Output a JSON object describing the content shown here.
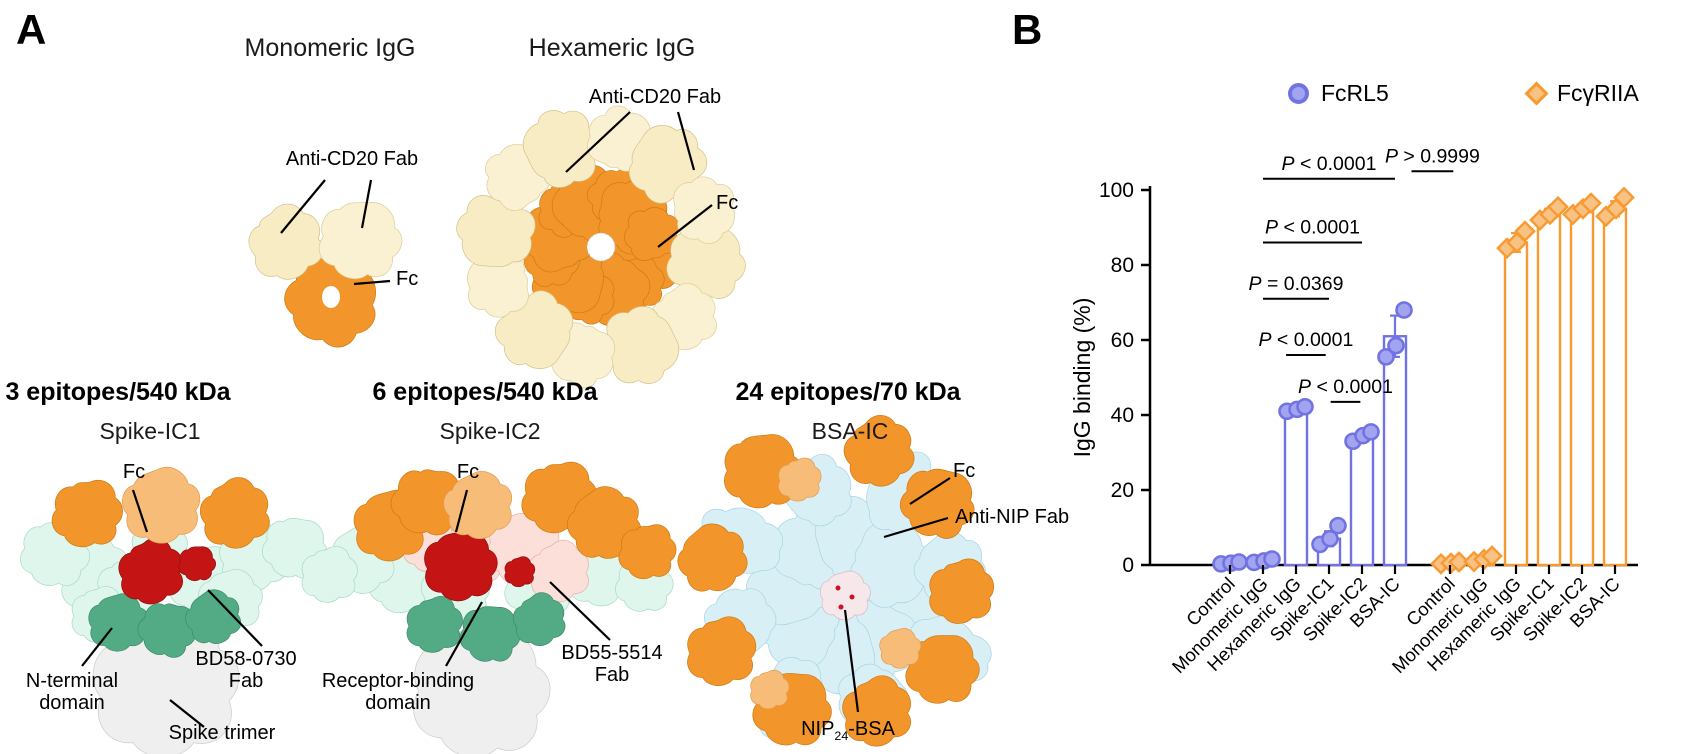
{
  "panel_a": {
    "label": "A",
    "structures": {
      "monomeric": {
        "title": "Monomeric IgG",
        "labels": {
          "fab": "Anti-CD20 Fab",
          "fc": "Fc"
        }
      },
      "hexameric": {
        "title": "Hexameric IgG",
        "labels": {
          "fab": "Anti-CD20 Fab",
          "fc": "Fc"
        }
      },
      "spike_ic1": {
        "heading": "3 epitopes/540 kDa",
        "title": "Spike-IC1",
        "labels": {
          "fc": "Fc",
          "fab": "BD58-0730\nFab",
          "ntd": "N-terminal\ndomain",
          "trimer": "Spike trimer"
        }
      },
      "spike_ic2": {
        "heading": "6 epitopes/540 kDa",
        "title": "Spike-IC2",
        "labels": {
          "fc": "Fc",
          "fab": "BD55-5514\nFab",
          "rbd": "Receptor-binding\ndomain"
        }
      },
      "bsa_ic": {
        "heading": "24 epitopes/70 kDa",
        "title": "BSA-IC",
        "labels": {
          "fc": "Fc",
          "fab": "Anti-NIP Fab",
          "nip_prefix": "NIP",
          "nip_sub": "24",
          "nip_suffix": "-BSA"
        }
      }
    },
    "colors": {
      "fab_cream": "#f7ecc3",
      "fc_orange": "#f2962b",
      "fc_light_orange": "#f8bc79",
      "spike_fab_mint": "#def6ec",
      "bd55_fab_pink": "#fbdfd8",
      "rbd_red": "#c41414",
      "ntd_green": "#53ab85",
      "spike_trimer_grey": "#efefef",
      "anti_nip_fab_blue": "#d9eff6"
    }
  },
  "panel_b": {
    "label": "B",
    "legend": [
      {
        "name": "FcRL5",
        "marker": "circle",
        "color": "#7173e3"
      },
      {
        "name": "FcγRIIA",
        "marker": "diamond",
        "color": "#f79a31"
      }
    ]
  },
  "chart_data": {
    "type": "bar",
    "title": "",
    "xlabel": "",
    "ylabel": "IgG binding (%)",
    "ylim": [
      0,
      100
    ],
    "yticks": [
      0,
      20,
      40,
      60,
      80,
      100
    ],
    "grid": false,
    "legend_position": "top",
    "categories": [
      "Control",
      "Monomeric IgG",
      "Hexameric IgG",
      "Spike-IC1",
      "Spike-IC2",
      "BSA-IC"
    ],
    "series": [
      {
        "name": "FcRL5",
        "marker": "circle",
        "color": "#7173e3",
        "point_fill": "#a3a4ef",
        "means": [
          0.5,
          1.0,
          41.5,
          7.0,
          34.5,
          61.0
        ],
        "sd": [
          0.3,
          0.4,
          0.8,
          2.0,
          1.2,
          5.5
        ],
        "points": [
          [
            0.3,
            0.5,
            0.8
          ],
          [
            0.7,
            1.1,
            1.6
          ],
          [
            41.0,
            41.5,
            42.2
          ],
          [
            5.5,
            7.0,
            10.5
          ],
          [
            33.0,
            34.5,
            35.5
          ],
          [
            55.5,
            58.5,
            68.0
          ]
        ]
      },
      {
        "name": "FcγRIIA",
        "marker": "diamond",
        "color": "#f79a31",
        "point_fill": "#f8c284",
        "means": [
          0.5,
          1.5,
          86.0,
          93.5,
          95.0,
          95.0
        ],
        "sd": [
          0.3,
          0.6,
          2.5,
          1.5,
          1.2,
          2.0
        ],
        "points": [
          [
            0.3,
            0.5,
            0.8
          ],
          [
            0.9,
            1.5,
            2.4
          ],
          [
            84.5,
            86.0,
            89.0
          ],
          [
            92.0,
            93.5,
            95.5
          ],
          [
            93.5,
            95.0,
            96.5
          ],
          [
            93.0,
            95.0,
            98.0
          ]
        ]
      }
    ],
    "p_annotations": [
      {
        "label": "P < 0.0001",
        "x1": 1.0,
        "x2": 5.0,
        "y": 103
      },
      {
        "label": "P < 0.0001",
        "x1": 1.0,
        "x2": 4.0,
        "y": 86
      },
      {
        "label": "P = 0.0369",
        "x1": 1.0,
        "x2": 3.0,
        "y": 71
      },
      {
        "label": "P < 0.0001",
        "x1": 1.7,
        "x2": 2.9,
        "y": 56
      },
      {
        "label": "P < 0.0001",
        "x1": 3.05,
        "x2": 3.95,
        "y": 43.5
      },
      {
        "label": "P > 0.9999",
        "x1": 5.3,
        "x2": 6.1,
        "y": 105
      }
    ]
  }
}
